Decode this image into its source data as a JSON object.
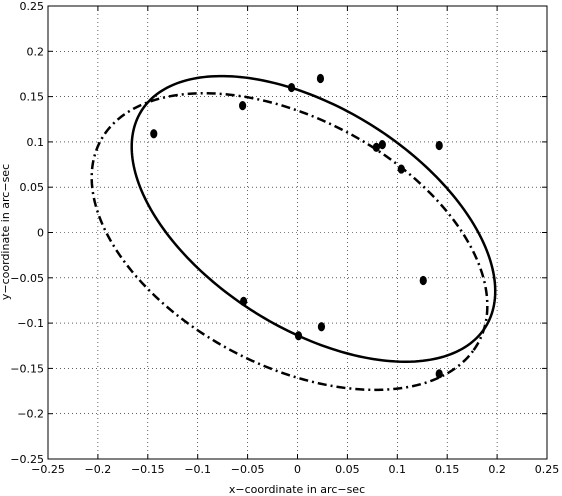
{
  "chart_data": {
    "type": "scatter",
    "title": "",
    "xlabel": "x−coordinate in arc−sec",
    "ylabel": "y−coordinate in arc−sec",
    "xlim": [
      -0.25,
      0.25
    ],
    "ylim": [
      -0.25,
      0.25
    ],
    "grid": true,
    "xticks": [
      -0.25,
      -0.2,
      -0.15,
      -0.1,
      -0.05,
      0,
      0.05,
      0.1,
      0.15,
      0.2,
      0.25
    ],
    "yticks": [
      -0.25,
      -0.2,
      -0.15,
      -0.1,
      -0.05,
      0,
      0.05,
      0.1,
      0.15,
      0.2,
      0.25
    ],
    "xtick_labels": [
      "−0.25",
      "−0.2",
      "−0.15",
      "−0.1",
      "−0.05",
      "0",
      "0.05",
      "0.1",
      "0.15",
      "0.2",
      "0.25"
    ],
    "ytick_labels": [
      "−0.25",
      "−0.2",
      "−0.15",
      "−0.1",
      "−0.05",
      "0",
      "0.05",
      "0.1",
      "0.15",
      "0.2",
      "0.25"
    ],
    "series": [
      {
        "style": "markers",
        "color": "#000000",
        "points": [
          {
            "x": -0.144,
            "y": 0.109
          },
          {
            "x": -0.055,
            "y": 0.14
          },
          {
            "x": -0.006,
            "y": 0.16
          },
          {
            "x": 0.023,
            "y": 0.17
          },
          {
            "x": 0.079,
            "y": 0.094
          },
          {
            "x": 0.085,
            "y": 0.097
          },
          {
            "x": 0.104,
            "y": 0.07
          },
          {
            "x": 0.142,
            "y": 0.096
          },
          {
            "x": 0.126,
            "y": -0.053
          },
          {
            "x": 0.142,
            "y": -0.156
          },
          {
            "x": -0.054,
            "y": -0.076
          },
          {
            "x": 0.001,
            "y": -0.114
          },
          {
            "x": 0.024,
            "y": -0.104
          }
        ]
      },
      {
        "style": "solid-ellipse",
        "color": "#000000",
        "ellipse": {
          "center_x": 0.016,
          "center_y": 0.015,
          "semi_major": 0.21,
          "semi_minor": 0.118,
          "angle_deg": -37
        }
      },
      {
        "style": "dashdot-ellipse",
        "color": "#000000",
        "ellipse": {
          "center_x": -0.008,
          "center_y": -0.01,
          "semi_major": 0.22,
          "semi_minor": 0.133,
          "angle_deg": -33
        }
      }
    ]
  }
}
